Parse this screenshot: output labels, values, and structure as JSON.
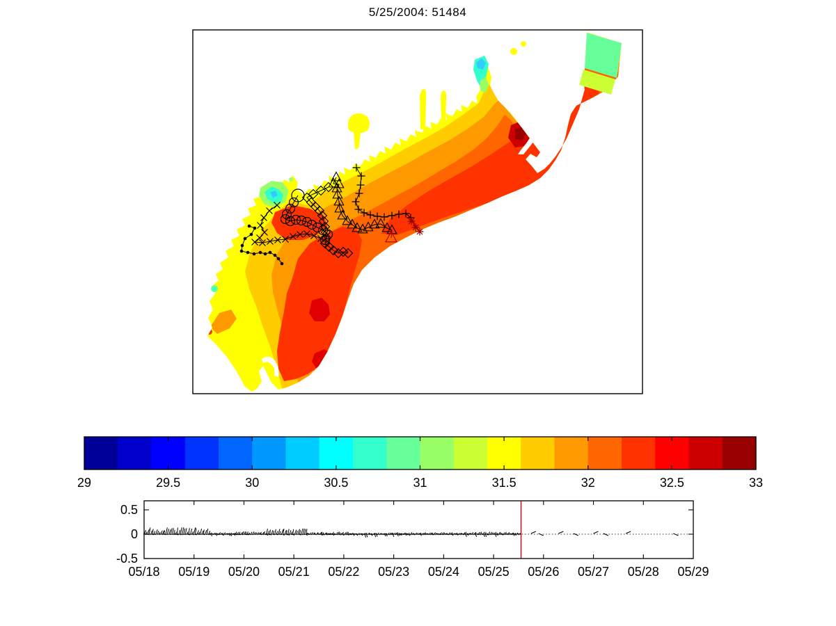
{
  "title": "5/25/2004: 51484",
  "chart_data": [
    {
      "id": "salinity-map",
      "type": "heatmap",
      "title": "5/25/2004: 51484",
      "description": "Filled contour map of a crescent-shaped coastal model domain (Long Bay style) with six drifter trajectories overlaid in black; warm (orange-red) values over most of the shelf, fresher cyan/green patches at river inlets and the northeast open-boundary corner.",
      "coords": "figure-pixels",
      "color_scale": {
        "min": 29,
        "max": 33,
        "step": 0.2,
        "tick_labels": [
          "29",
          "29.5",
          "30",
          "30.5",
          "31",
          "31.5",
          "32",
          "32.5",
          "33"
        ],
        "colors": [
          "#000099",
          "#0000CC",
          "#0000FF",
          "#0033FF",
          "#0066FF",
          "#0099FF",
          "#00CCFF",
          "#00FFFF",
          "#33FFCC",
          "#66FF99",
          "#99FF66",
          "#CCFF33",
          "#FFFF00",
          "#FFCC00",
          "#FF9900",
          "#FF6600",
          "#FF3300",
          "#FF0000",
          "#CC0000",
          "#990000"
        ]
      },
      "tracks": [
        {
          "name": "drifter-dots",
          "marker": "dot",
          "color": "#000000",
          "points": [
            [
              358,
              325
            ],
            [
              366,
              328
            ],
            [
              361,
              337
            ],
            [
              352,
              343
            ],
            [
              348,
              353
            ],
            [
              347,
              361
            ],
            [
              356,
              363
            ],
            [
              365,
              365
            ],
            [
              374,
              363
            ],
            [
              381,
              365
            ],
            [
              388,
              363
            ],
            [
              395,
              367
            ],
            [
              400,
              372
            ],
            [
              405,
              379
            ]
          ]
        },
        {
          "name": "drifter-x",
          "marker": "x",
          "color": "#000000",
          "points": [
            [
              398,
              295
            ],
            [
              387,
              303
            ],
            [
              379,
              313
            ],
            [
              374,
              324
            ],
            [
              380,
              334
            ],
            [
              373,
              342
            ],
            [
              366,
              348
            ],
            [
              377,
              349
            ],
            [
              388,
              347
            ],
            [
              399,
              345
            ],
            [
              410,
              344
            ],
            [
              421,
              340
            ],
            [
              431,
              337
            ],
            [
              441,
              336
            ],
            [
              451,
              339
            ],
            [
              461,
              343
            ]
          ]
        },
        {
          "name": "drifter-circle",
          "marker": "circle",
          "color": "#000000",
          "points": [
            [
              428,
              281
            ],
            [
              422,
              291
            ],
            [
              417,
              300
            ],
            [
              412,
              308
            ],
            [
              410,
              315
            ],
            [
              417,
              318
            ],
            [
              425,
              316
            ],
            [
              433,
              317
            ],
            [
              441,
              319
            ],
            [
              448,
              323
            ],
            [
              456,
              327
            ],
            [
              464,
              331
            ],
            [
              471,
              337
            ],
            [
              467,
              345
            ]
          ]
        },
        {
          "name": "drifter-diamond",
          "marker": "diamond",
          "color": "#000000",
          "points": [
            [
              472,
              269
            ],
            [
              461,
              274
            ],
            [
              450,
              279
            ],
            [
              441,
              284
            ],
            [
              447,
              291
            ],
            [
              453,
              297
            ],
            [
              459,
              303
            ],
            [
              463,
              310
            ],
            [
              465,
              318
            ],
            [
              467,
              326
            ],
            [
              468,
              334
            ],
            [
              469,
              342
            ],
            [
              467,
              350
            ],
            [
              473,
              355
            ],
            [
              479,
              360
            ],
            [
              486,
              364
            ],
            [
              493,
              362
            ],
            [
              500,
              364
            ]
          ]
        },
        {
          "name": "drifter-triangle",
          "marker": "triangle",
          "color": "#000000",
          "points": [
            [
              483,
              255
            ],
            [
              479,
              264
            ],
            [
              487,
              265
            ],
            [
              484,
              271
            ],
            [
              485,
              280
            ],
            [
              487,
              290
            ],
            [
              488,
              300
            ],
            [
              492,
              310
            ],
            [
              499,
              318
            ],
            [
              506,
              323
            ],
            [
              513,
              328
            ],
            [
              521,
              330
            ],
            [
              529,
              327
            ],
            [
              538,
              323
            ],
            [
              547,
              322
            ],
            [
              556,
              328
            ],
            [
              563,
              331
            ]
          ],
          "end_marker": {
            "type": "triangle",
            "color": "#AA0000",
            "points": [
              [
                562,
                342
              ]
            ]
          }
        },
        {
          "name": "drifter-plus",
          "marker": "plus",
          "color": "#000000",
          "points": [
            [
              512,
              241
            ],
            [
              519,
              253
            ],
            [
              518,
              266
            ],
            [
              516,
              278
            ],
            [
              511,
              290
            ],
            [
              515,
              301
            ],
            [
              523,
              306
            ],
            [
              532,
              309
            ],
            [
              542,
              311
            ],
            [
              552,
              312
            ],
            [
              563,
              310
            ],
            [
              573,
              308
            ],
            [
              583,
              307
            ],
            [
              590,
              313
            ]
          ],
          "end_marker": {
            "type": "asterisk",
            "color": "#990000",
            "points": [
              [
                591,
                318
              ],
              [
                597,
                327
              ],
              [
                603,
                333
              ]
            ]
          }
        }
      ]
    },
    {
      "id": "stick-timeseries",
      "type": "line",
      "description": "Stick/feather plot near zero with dotted zero line and red vertical line marking the current map time (~05/25 12:00).",
      "x_tick_labels": [
        "05/18",
        "05/19",
        "05/20",
        "05/21",
        "05/22",
        "05/23",
        "05/24",
        "05/25",
        "05/26",
        "05/27",
        "05/28",
        "05/29"
      ],
      "y_tick_labels": [
        "0.5",
        "0",
        "-0.5"
      ],
      "y_ticks": [
        0.5,
        0,
        -0.5
      ],
      "ylim": [
        -0.7,
        0.7
      ],
      "zero_line_style": "dotted",
      "current_time_line": {
        "day_offset": 7.55,
        "color": "#CC0000"
      },
      "stick_envelope": [
        [
          0.0,
          1.3,
          0.14,
          0.02
        ],
        [
          1.3,
          1.8,
          0.04,
          0.05
        ],
        [
          1.8,
          2.45,
          0.06,
          0.02
        ],
        [
          2.45,
          3.25,
          0.12,
          0.03
        ],
        [
          3.25,
          4.15,
          0.05,
          0.03
        ],
        [
          4.15,
          5.0,
          0.03,
          0.07
        ],
        [
          5.0,
          5.6,
          0.04,
          0.05
        ],
        [
          5.6,
          6.4,
          0.04,
          0.03
        ],
        [
          6.4,
          7.55,
          0.05,
          0.06
        ]
      ],
      "sparse_marks_days": [
        7.75,
        7.9,
        8.3,
        8.6,
        9.0,
        9.2,
        9.65,
        10.6
      ]
    }
  ],
  "geometry_note": "approximate pixel layout of original 1201x900 figure"
}
